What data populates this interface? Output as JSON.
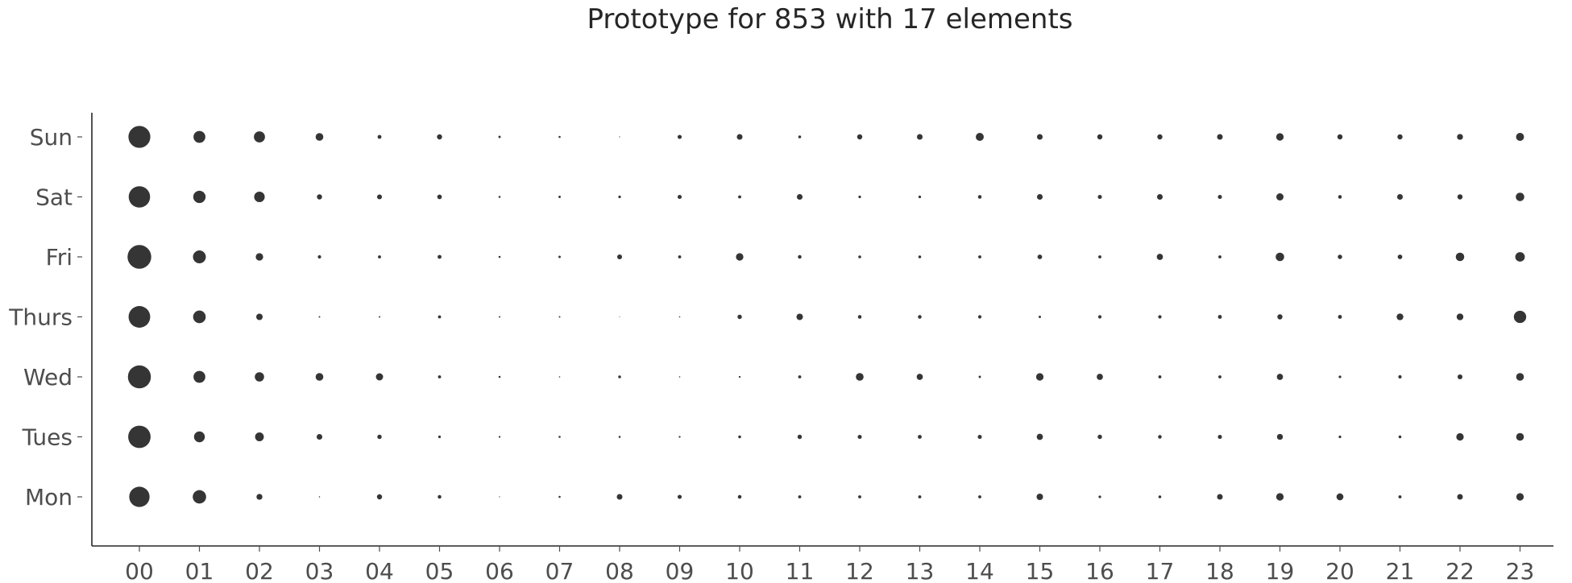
{
  "chart_data": {
    "type": "scatter",
    "title": "Prototype for 853 with 17 elements",
    "xlabel": "",
    "ylabel": "",
    "x_categories": [
      "00",
      "01",
      "02",
      "03",
      "04",
      "05",
      "06",
      "07",
      "08",
      "09",
      "10",
      "11",
      "12",
      "13",
      "14",
      "15",
      "16",
      "17",
      "18",
      "19",
      "20",
      "21",
      "22",
      "23"
    ],
    "y_categories": [
      "Mon",
      "Tues",
      "Wed",
      "Thurs",
      "Fri",
      "Sat",
      "Sun"
    ],
    "grid": false,
    "marker_color": "#262626",
    "values": {
      "Sun": [
        8.5,
        4.6,
        4.3,
        3.0,
        1.5,
        2.0,
        0.9,
        0.8,
        0.4,
        1.6,
        2.2,
        1.1,
        2.0,
        2.2,
        3.1,
        2.2,
        2.0,
        2.0,
        2.2,
        2.9,
        2.0,
        2.0,
        2.3,
        3.1
      ],
      "Sat": [
        8.3,
        4.8,
        4.1,
        2.0,
        1.9,
        1.8,
        0.8,
        0.9,
        1.0,
        1.6,
        1.2,
        2.2,
        1.0,
        1.0,
        1.4,
        2.2,
        1.6,
        2.2,
        1.6,
        2.8,
        1.4,
        2.2,
        2.0,
        3.3
      ],
      "Fri": [
        9.2,
        5.0,
        2.9,
        1.3,
        1.2,
        1.5,
        0.8,
        0.9,
        1.9,
        1.2,
        2.9,
        1.4,
        1.1,
        1.1,
        1.2,
        1.8,
        1.2,
        2.4,
        1.2,
        3.3,
        1.7,
        1.8,
        3.3,
        3.7
      ],
      "Thurs": [
        8.4,
        4.9,
        2.5,
        0.6,
        0.6,
        1.2,
        0.6,
        0.6,
        0.3,
        0.5,
        1.7,
        2.5,
        1.4,
        1.4,
        1.3,
        0.9,
        1.3,
        1.3,
        1.5,
        2.0,
        1.5,
        2.6,
        2.6,
        4.8
      ],
      "Wed": [
        8.9,
        4.6,
        3.6,
        3.0,
        2.8,
        1.2,
        0.8,
        0.5,
        1.1,
        0.5,
        0.7,
        1.2,
        3.0,
        2.4,
        0.9,
        2.9,
        2.4,
        1.2,
        1.2,
        2.4,
        1.0,
        1.3,
        1.9,
        3.0
      ],
      "Tues": [
        8.7,
        4.2,
        3.4,
        2.2,
        1.7,
        1.0,
        0.7,
        0.8,
        0.8,
        0.7,
        1.1,
        1.7,
        1.6,
        1.5,
        1.6,
        2.4,
        1.7,
        1.4,
        1.6,
        2.3,
        1.0,
        1.1,
        2.9,
        3.0
      ],
      "Mon": [
        7.9,
        5.2,
        2.3,
        0.5,
        2.0,
        1.4,
        0.4,
        0.8,
        2.2,
        1.6,
        1.4,
        1.2,
        1.2,
        1.2,
        1.2,
        2.5,
        1.0,
        1.1,
        2.2,
        2.9,
        2.7,
        1.2,
        2.2,
        2.9
      ]
    }
  }
}
